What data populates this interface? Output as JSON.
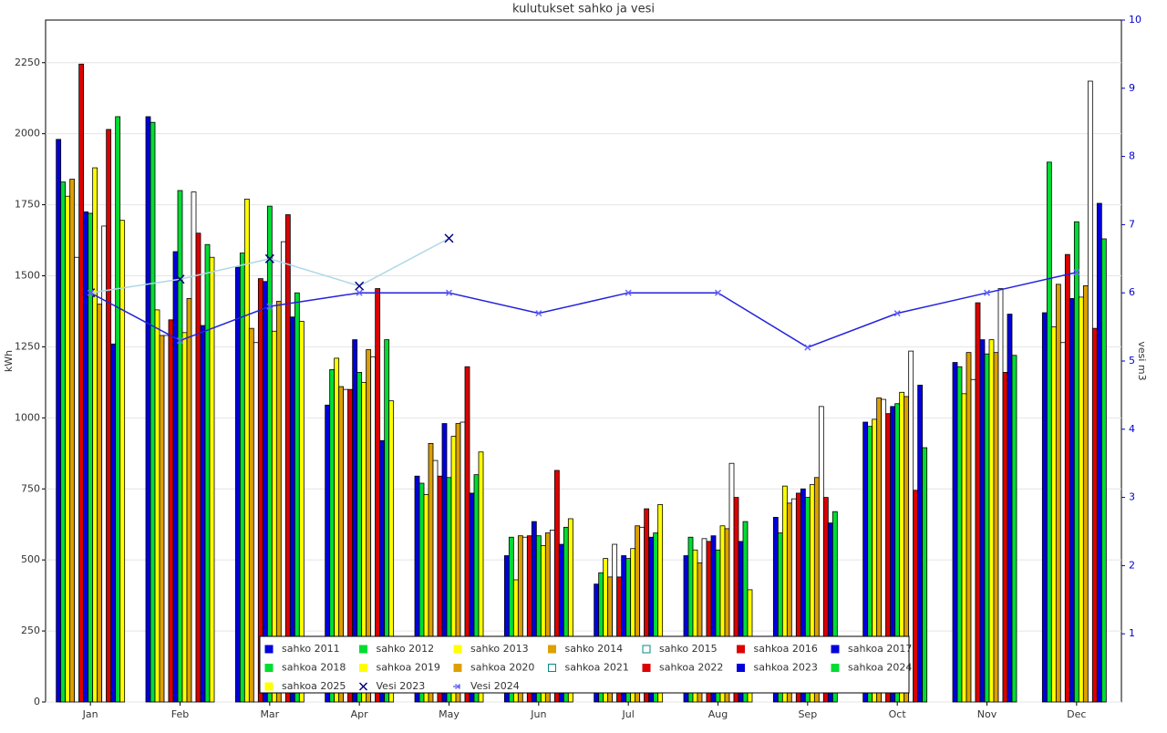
{
  "chart_data": {
    "type": "bar",
    "title": "kulutukset sahko ja vesi",
    "ylabel": "kWh",
    "y2label": "vesi m3",
    "categories": [
      "Jan",
      "Feb",
      "Mar",
      "Apr",
      "May",
      "Jun",
      "Jul",
      "Aug",
      "Sep",
      "Oct",
      "Nov",
      "Dec"
    ],
    "ylim": [
      0,
      2400
    ],
    "yticks": [
      0,
      250,
      500,
      750,
      1000,
      1250,
      1500,
      1750,
      2000,
      2250
    ],
    "y2lim": [
      0,
      10
    ],
    "y2ticks": [
      1,
      2,
      3,
      4,
      5,
      6,
      7,
      8,
      9,
      10
    ],
    "y2color": "#0000cc",
    "grid": true,
    "legend": "bottom",
    "series": [
      {
        "name": "sahko 2011",
        "color": "#0000dd",
        "values": [
          1980,
          2060,
          1530,
          1045,
          795,
          515,
          415,
          515,
          650,
          985,
          1195,
          1370
        ]
      },
      {
        "name": "sahko 2012",
        "color": "#00dd33",
        "values": [
          1830,
          2040,
          1580,
          1170,
          770,
          580,
          455,
          580,
          595,
          970,
          1180,
          1900
        ]
      },
      {
        "name": "sahko 2013",
        "color": "#ffff00",
        "values": [
          1780,
          1380,
          1770,
          1210,
          730,
          430,
          505,
          535,
          760,
          995,
          1085,
          1320
        ]
      },
      {
        "name": "sahko 2014",
        "color": "#dda000",
        "values": [
          1840,
          1290,
          1315,
          1110,
          910,
          585,
          440,
          490,
          700,
          1070,
          1230,
          1470
        ]
      },
      {
        "name": "sahko 2015",
        "color": "#ffffff",
        "values": [
          1565,
          1290,
          1265,
          1100,
          850,
          580,
          555,
          575,
          715,
          1065,
          1135,
          1265
        ]
      },
      {
        "name": "sahkoa 2016",
        "color": "#dd0000",
        "values": [
          2245,
          1345,
          1490,
          1100,
          795,
          585,
          440,
          565,
          735,
          1015,
          1405,
          1575
        ]
      },
      {
        "name": "sahkoa 2017",
        "color": "#0000dd",
        "values": [
          1725,
          1585,
          1480,
          1275,
          980,
          635,
          515,
          585,
          750,
          1040,
          1275,
          1420
        ]
      },
      {
        "name": "sahkoa 2018",
        "color": "#00dd33",
        "values": [
          1720,
          1800,
          1745,
          1160,
          790,
          585,
          505,
          535,
          720,
          1050,
          1225,
          1690
        ]
      },
      {
        "name": "sahkoa 2019",
        "color": "#ffff00",
        "values": [
          1880,
          1300,
          1305,
          1125,
          935,
          550,
          540,
          620,
          765,
          1090,
          1275,
          1425
        ]
      },
      {
        "name": "sahkoa 2020",
        "color": "#dda000",
        "values": [
          1400,
          1420,
          1410,
          1240,
          980,
          595,
          620,
          610,
          790,
          1075,
          1230,
          1465
        ]
      },
      {
        "name": "sahkoa 2021",
        "color": "#ffffff",
        "values": [
          1675,
          1795,
          1620,
          1215,
          985,
          605,
          615,
          840,
          1040,
          1235,
          1455,
          2185
        ]
      },
      {
        "name": "sahkoa 2022",
        "color": "#dd0000",
        "values": [
          2015,
          1650,
          1715,
          1455,
          1180,
          815,
          680,
          720,
          720,
          745,
          1160,
          1315
        ]
      },
      {
        "name": "sahkoa 2023",
        "color": "#0000dd",
        "values": [
          1260,
          1325,
          1355,
          920,
          735,
          555,
          580,
          565,
          630,
          1115,
          1365,
          1755
        ]
      },
      {
        "name": "sahkoa 2024",
        "color": "#00dd33",
        "values": [
          2060,
          1610,
          1440,
          1275,
          800,
          615,
          595,
          635,
          670,
          895,
          1220,
          1630
        ]
      },
      {
        "name": "sahkoa 2025",
        "color": "#ffff00",
        "values": [
          1695,
          1565,
          1340,
          1060,
          880,
          645,
          695,
          395,
          null,
          null,
          null,
          null
        ]
      },
      {
        "name": "Vesi 2023",
        "type": "line",
        "axis": "y2",
        "color": "#add8e6",
        "marker_color": "#000080",
        "values": [
          6,
          6.2,
          6.5,
          6.1,
          6.8,
          null,
          null,
          null,
          null,
          null,
          null,
          null
        ]
      },
      {
        "name": "Vesi 2024",
        "type": "line",
        "axis": "y2",
        "color": "#2222dd",
        "marker_color": "#6666ff",
        "values": [
          6,
          5.3,
          5.8,
          6,
          6,
          5.7,
          6,
          6,
          5.2,
          5.7,
          6,
          6.3
        ]
      }
    ]
  }
}
